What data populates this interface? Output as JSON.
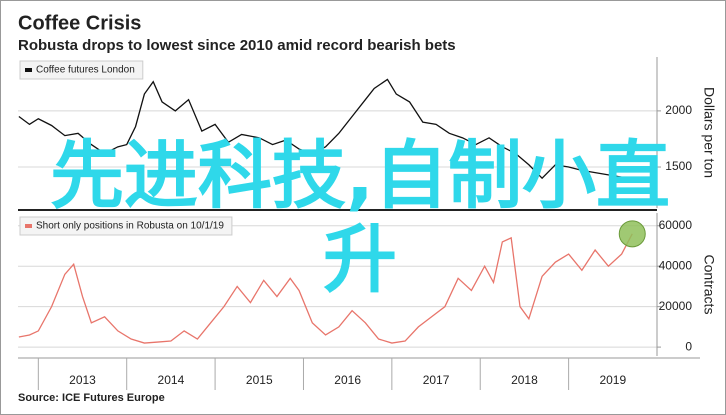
{
  "title": "Coffee Crisis",
  "subtitle": "Robusta drops to lowest since 2010 amid record bearish bets",
  "source": "Source: ICE Futures Europe",
  "overlay_text": "先进科技,自制小直升",
  "chart_data": [
    {
      "type": "line",
      "x": [
        2012.78,
        2012.9,
        2013.0,
        2013.15,
        2013.3,
        2013.45,
        2013.6,
        2013.75,
        2013.9,
        2014.0,
        2014.1,
        2014.2,
        2014.3,
        2014.4,
        2014.55,
        2014.7,
        2014.85,
        2015.0,
        2015.15,
        2015.3,
        2015.5,
        2015.65,
        2015.8,
        2015.95,
        2016.1,
        2016.25,
        2016.4,
        2016.55,
        2016.7,
        2016.8,
        2016.95,
        2017.05,
        2017.2,
        2017.35,
        2017.5,
        2017.65,
        2017.8,
        2017.95,
        2018.1,
        2018.25,
        2018.4,
        2018.55,
        2018.7,
        2018.85,
        2019.0,
        2019.15,
        2019.3,
        2019.45,
        2019.6,
        2019.75
      ],
      "xlim": [
        2012.77,
        2020.0
      ],
      "series": [
        {
          "name": "Coffee futures London",
          "color": "#111111",
          "values": [
            1950,
            1880,
            1930,
            1870,
            1780,
            1800,
            1700,
            1620,
            1680,
            1700,
            1860,
            2150,
            2260,
            2080,
            2000,
            2100,
            1820,
            1880,
            1720,
            1790,
            1760,
            1700,
            1740,
            1660,
            1620,
            1680,
            1800,
            1950,
            2100,
            2200,
            2280,
            2150,
            2080,
            1900,
            1880,
            1800,
            1760,
            1700,
            1760,
            1680,
            1620,
            1520,
            1400,
            1520,
            1500,
            1470,
            1450,
            1430,
            1410,
            1380
          ]
        }
      ],
      "ylim": [
        1135,
        2480
      ],
      "yticks": [
        1500,
        2000
      ],
      "y_label": "Dollars per ton",
      "grid": true
    },
    {
      "type": "line",
      "x": [
        2012.78,
        2012.9,
        2013.0,
        2013.15,
        2013.3,
        2013.4,
        2013.5,
        2013.6,
        2013.75,
        2013.9,
        2014.05,
        2014.2,
        2014.35,
        2014.5,
        2014.65,
        2014.8,
        2014.95,
        2015.1,
        2015.25,
        2015.4,
        2015.55,
        2015.7,
        2015.85,
        2015.95,
        2016.1,
        2016.25,
        2016.4,
        2016.55,
        2016.7,
        2016.85,
        2017.0,
        2017.15,
        2017.3,
        2017.45,
        2017.6,
        2017.75,
        2017.9,
        2018.05,
        2018.15,
        2018.25,
        2018.35,
        2018.45,
        2018.55,
        2018.7,
        2018.85,
        2019.0,
        2019.15,
        2019.3,
        2019.45,
        2019.6,
        2019.72
      ],
      "xlim": [
        2012.77,
        2020.0
      ],
      "xticks": [
        2013,
        2014,
        2015,
        2016,
        2017,
        2018,
        2019
      ],
      "series": [
        {
          "name": "Short only positions in Robusta on 10/1/19",
          "color": "#e8756b",
          "values": [
            5000,
            6000,
            8000,
            20000,
            36000,
            41000,
            25000,
            12000,
            15000,
            8000,
            4000,
            2000,
            2500,
            3000,
            8000,
            4000,
            12000,
            20000,
            30000,
            22000,
            33000,
            25000,
            34000,
            28000,
            12000,
            6000,
            10000,
            18000,
            12000,
            4000,
            2000,
            3000,
            10000,
            15000,
            20000,
            34000,
            28000,
            40000,
            32000,
            52000,
            54000,
            20000,
            14000,
            35000,
            42000,
            46000,
            38000,
            48000,
            40000,
            46000,
            56000
          ]
        }
      ],
      "ylim": [
        -4400,
        66300
      ],
      "yticks": [
        0,
        20000,
        40000,
        60000
      ],
      "y_label": "Contracts",
      "grid": true,
      "highlight_color": "#8fbf5a"
    }
  ]
}
